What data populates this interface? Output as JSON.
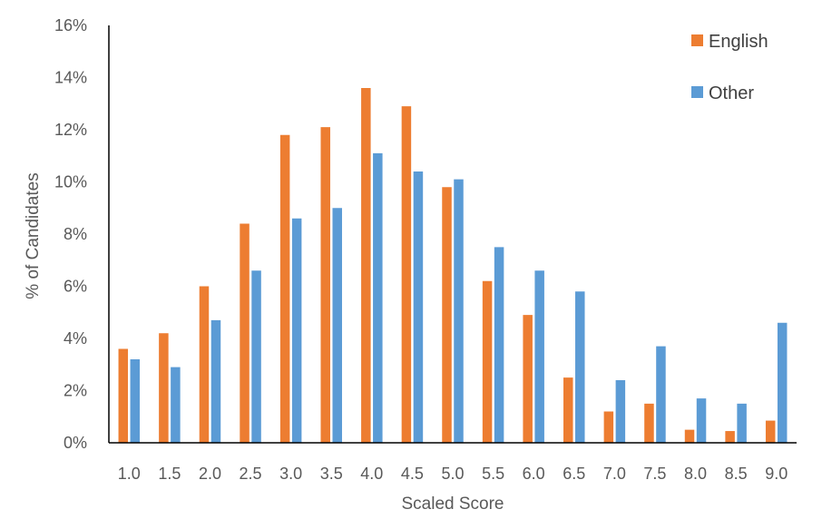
{
  "chart_data": {
    "type": "bar",
    "xlabel": "Scaled Score",
    "ylabel": "% of Candidates",
    "ylim": [
      0,
      16
    ],
    "y_tick_step": 2,
    "y_tick_suffix": "%",
    "grid": false,
    "legend_position": "top-right",
    "categories": [
      "1.0",
      "1.5",
      "2.0",
      "2.5",
      "3.0",
      "3.5",
      "4.0",
      "4.5",
      "5.0",
      "5.5",
      "6.0",
      "6.5",
      "7.0",
      "7.5",
      "8.0",
      "8.5",
      "9.0"
    ],
    "series": [
      {
        "name": "English",
        "color": "#ED7D31",
        "values": [
          3.6,
          4.2,
          6.0,
          8.4,
          11.8,
          12.1,
          13.6,
          12.9,
          9.8,
          6.2,
          4.9,
          2.5,
          1.2,
          1.5,
          0.5,
          0.45,
          0.85
        ]
      },
      {
        "name": "Other",
        "color": "#5B9BD5",
        "values": [
          3.2,
          2.9,
          4.7,
          6.6,
          8.6,
          9.0,
          11.1,
          10.4,
          10.1,
          7.5,
          6.6,
          5.8,
          2.4,
          3.7,
          1.7,
          1.5,
          4.6
        ]
      }
    ]
  }
}
